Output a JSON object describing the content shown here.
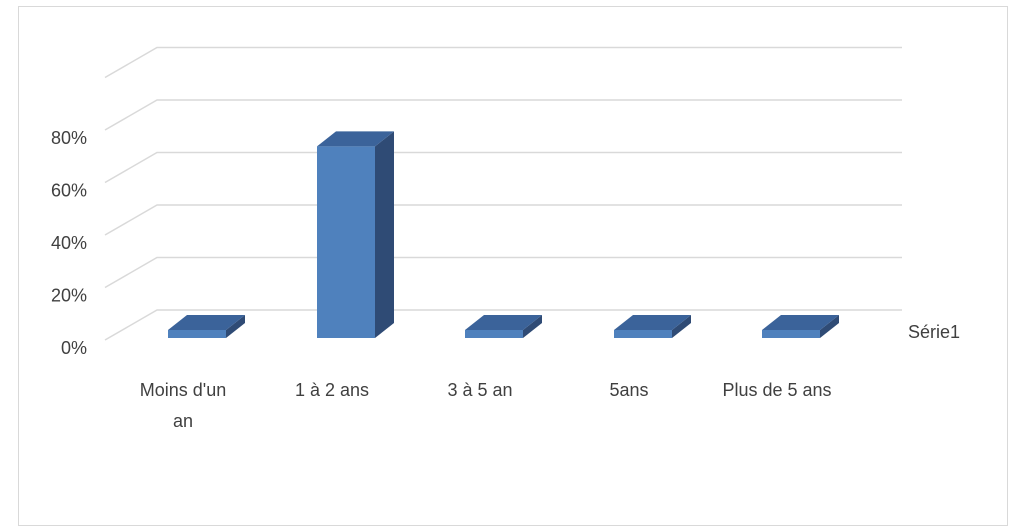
{
  "chart_data": {
    "type": "bar",
    "style": "3d-column",
    "categories": [
      "Moins d'un an",
      "1 à 2 ans",
      "3 à 5 an",
      "5ans",
      "Plus de 5 ans"
    ],
    "category_lines": [
      [
        "Moins d'un",
        "an"
      ],
      [
        "1 à 2 ans"
      ],
      [
        "3 à 5 an"
      ],
      [
        "5ans"
      ],
      [
        "Plus de 5 ans"
      ]
    ],
    "series": [
      {
        "name": "Série1",
        "values": [
          0.02,
          0.73,
          0.02,
          0.02,
          0.02
        ]
      }
    ],
    "y_ticks": [
      0,
      0.2,
      0.4,
      0.6,
      0.8
    ],
    "y_tick_labels": [
      "0%",
      "20%",
      "40%",
      "60%",
      "80%"
    ],
    "ylim": [
      0,
      1.0
    ],
    "grid": true,
    "legend": "right",
    "colors": {
      "front": "#4f81bd",
      "side": "#2f4b75",
      "top": "#3b639a",
      "grid": "#d9d9d9",
      "text": "#404040"
    }
  }
}
